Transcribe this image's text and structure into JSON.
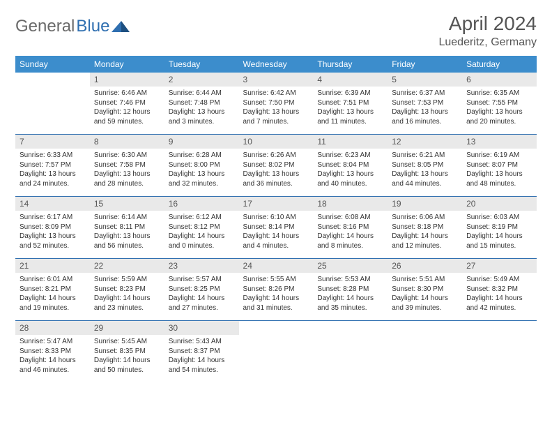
{
  "logo": {
    "textGray": "General",
    "textBlue": "Blue",
    "grayColor": "#6a6a6a",
    "blueColor": "#2f6fb0"
  },
  "header": {
    "month": "April 2024",
    "location": "Luederitz, Germany"
  },
  "colors": {
    "headerBar": "#3c8dcc",
    "headerText": "#ffffff",
    "rowBorder": "#2f6fb0",
    "dayNumBg": "#e9e9e9",
    "dayNumText": "#555555",
    "bodyText": "#333333"
  },
  "dayHeaders": [
    "Sunday",
    "Monday",
    "Tuesday",
    "Wednesday",
    "Thursday",
    "Friday",
    "Saturday"
  ],
  "weeks": [
    [
      null,
      {
        "n": "1",
        "sunrise": "6:46 AM",
        "sunset": "7:46 PM",
        "dlH": "12",
        "dlM": "59"
      },
      {
        "n": "2",
        "sunrise": "6:44 AM",
        "sunset": "7:48 PM",
        "dlH": "13",
        "dlM": "3"
      },
      {
        "n": "3",
        "sunrise": "6:42 AM",
        "sunset": "7:50 PM",
        "dlH": "13",
        "dlM": "7"
      },
      {
        "n": "4",
        "sunrise": "6:39 AM",
        "sunset": "7:51 PM",
        "dlH": "13",
        "dlM": "11"
      },
      {
        "n": "5",
        "sunrise": "6:37 AM",
        "sunset": "7:53 PM",
        "dlH": "13",
        "dlM": "16"
      },
      {
        "n": "6",
        "sunrise": "6:35 AM",
        "sunset": "7:55 PM",
        "dlH": "13",
        "dlM": "20"
      }
    ],
    [
      {
        "n": "7",
        "sunrise": "6:33 AM",
        "sunset": "7:57 PM",
        "dlH": "13",
        "dlM": "24"
      },
      {
        "n": "8",
        "sunrise": "6:30 AM",
        "sunset": "7:58 PM",
        "dlH": "13",
        "dlM": "28"
      },
      {
        "n": "9",
        "sunrise": "6:28 AM",
        "sunset": "8:00 PM",
        "dlH": "13",
        "dlM": "32"
      },
      {
        "n": "10",
        "sunrise": "6:26 AM",
        "sunset": "8:02 PM",
        "dlH": "13",
        "dlM": "36"
      },
      {
        "n": "11",
        "sunrise": "6:23 AM",
        "sunset": "8:04 PM",
        "dlH": "13",
        "dlM": "40"
      },
      {
        "n": "12",
        "sunrise": "6:21 AM",
        "sunset": "8:05 PM",
        "dlH": "13",
        "dlM": "44"
      },
      {
        "n": "13",
        "sunrise": "6:19 AM",
        "sunset": "8:07 PM",
        "dlH": "13",
        "dlM": "48"
      }
    ],
    [
      {
        "n": "14",
        "sunrise": "6:17 AM",
        "sunset": "8:09 PM",
        "dlH": "13",
        "dlM": "52"
      },
      {
        "n": "15",
        "sunrise": "6:14 AM",
        "sunset": "8:11 PM",
        "dlH": "13",
        "dlM": "56"
      },
      {
        "n": "16",
        "sunrise": "6:12 AM",
        "sunset": "8:12 PM",
        "dlH": "14",
        "dlM": "0"
      },
      {
        "n": "17",
        "sunrise": "6:10 AM",
        "sunset": "8:14 PM",
        "dlH": "14",
        "dlM": "4"
      },
      {
        "n": "18",
        "sunrise": "6:08 AM",
        "sunset": "8:16 PM",
        "dlH": "14",
        "dlM": "8"
      },
      {
        "n": "19",
        "sunrise": "6:06 AM",
        "sunset": "8:18 PM",
        "dlH": "14",
        "dlM": "12"
      },
      {
        "n": "20",
        "sunrise": "6:03 AM",
        "sunset": "8:19 PM",
        "dlH": "14",
        "dlM": "15"
      }
    ],
    [
      {
        "n": "21",
        "sunrise": "6:01 AM",
        "sunset": "8:21 PM",
        "dlH": "14",
        "dlM": "19"
      },
      {
        "n": "22",
        "sunrise": "5:59 AM",
        "sunset": "8:23 PM",
        "dlH": "14",
        "dlM": "23"
      },
      {
        "n": "23",
        "sunrise": "5:57 AM",
        "sunset": "8:25 PM",
        "dlH": "14",
        "dlM": "27"
      },
      {
        "n": "24",
        "sunrise": "5:55 AM",
        "sunset": "8:26 PM",
        "dlH": "14",
        "dlM": "31"
      },
      {
        "n": "25",
        "sunrise": "5:53 AM",
        "sunset": "8:28 PM",
        "dlH": "14",
        "dlM": "35"
      },
      {
        "n": "26",
        "sunrise": "5:51 AM",
        "sunset": "8:30 PM",
        "dlH": "14",
        "dlM": "39"
      },
      {
        "n": "27",
        "sunrise": "5:49 AM",
        "sunset": "8:32 PM",
        "dlH": "14",
        "dlM": "42"
      }
    ],
    [
      {
        "n": "28",
        "sunrise": "5:47 AM",
        "sunset": "8:33 PM",
        "dlH": "14",
        "dlM": "46"
      },
      {
        "n": "29",
        "sunrise": "5:45 AM",
        "sunset": "8:35 PM",
        "dlH": "14",
        "dlM": "50"
      },
      {
        "n": "30",
        "sunrise": "5:43 AM",
        "sunset": "8:37 PM",
        "dlH": "14",
        "dlM": "54"
      },
      null,
      null,
      null,
      null
    ]
  ]
}
